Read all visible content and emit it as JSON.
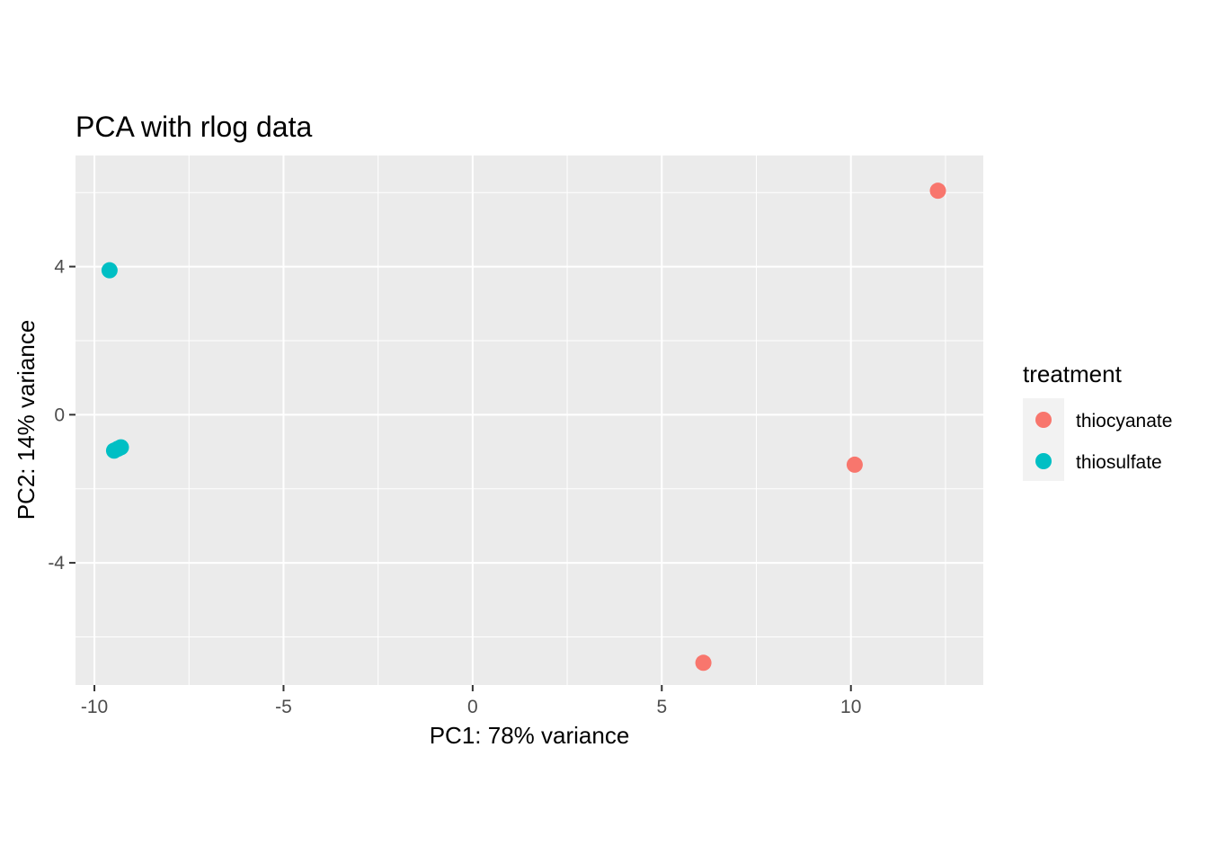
{
  "chart_data": {
    "type": "scatter",
    "title": "PCA with rlog data",
    "xlabel": "PC1: 78% variance",
    "ylabel": "PC2: 14% variance",
    "xlim": [
      -10.5,
      13.5
    ],
    "ylim": [
      -7.3,
      7.0
    ],
    "x_ticks": [
      -10,
      -5,
      0,
      5,
      10
    ],
    "y_ticks": [
      -4,
      0,
      4
    ],
    "grid": true,
    "legend": {
      "title": "treatment",
      "position": "right"
    },
    "series": [
      {
        "name": "thiocyanate",
        "color": "#F8766D",
        "points": [
          {
            "x": 12.3,
            "y": 6.05
          },
          {
            "x": 10.1,
            "y": -1.35
          },
          {
            "x": 6.1,
            "y": -6.7
          }
        ]
      },
      {
        "name": "thiosulfate",
        "color": "#00BFC4",
        "points": [
          {
            "x": -9.6,
            "y": 3.9
          },
          {
            "x": -9.3,
            "y": -0.88
          },
          {
            "x": -9.38,
            "y": -0.92
          },
          {
            "x": -9.48,
            "y": -0.97
          }
        ]
      }
    ]
  }
}
